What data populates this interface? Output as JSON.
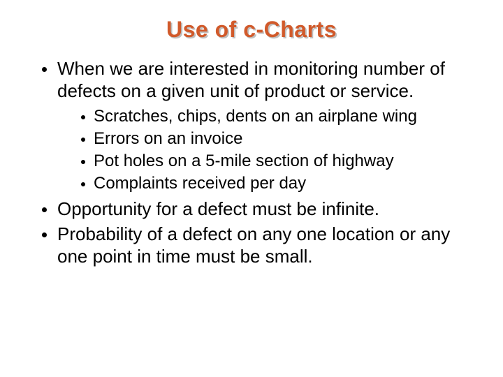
{
  "title": {
    "text": "Use of c-Charts",
    "color": "#d15a2b",
    "shadow_color": "#bfbfbf",
    "fontsize": 32
  },
  "body": {
    "text_color": "#000000",
    "bullet_color": "#000000",
    "level1_fontsize": 26,
    "level2_fontsize": 24
  },
  "bullets": [
    {
      "text": "When we are interested in monitoring number of defects on a given unit of product or service.",
      "children": [
        {
          "text": "Scratches, chips, dents on an airplane wing"
        },
        {
          "text": "Errors on an invoice"
        },
        {
          "text": "Pot holes on a 5-mile section of highway"
        },
        {
          "text": "Complaints received per day"
        }
      ]
    },
    {
      "text": "Opportunity for a defect must be infinite.",
      "children": []
    },
    {
      "text": "Probability of a defect on any one location or any one point in time must be small.",
      "children": []
    }
  ]
}
